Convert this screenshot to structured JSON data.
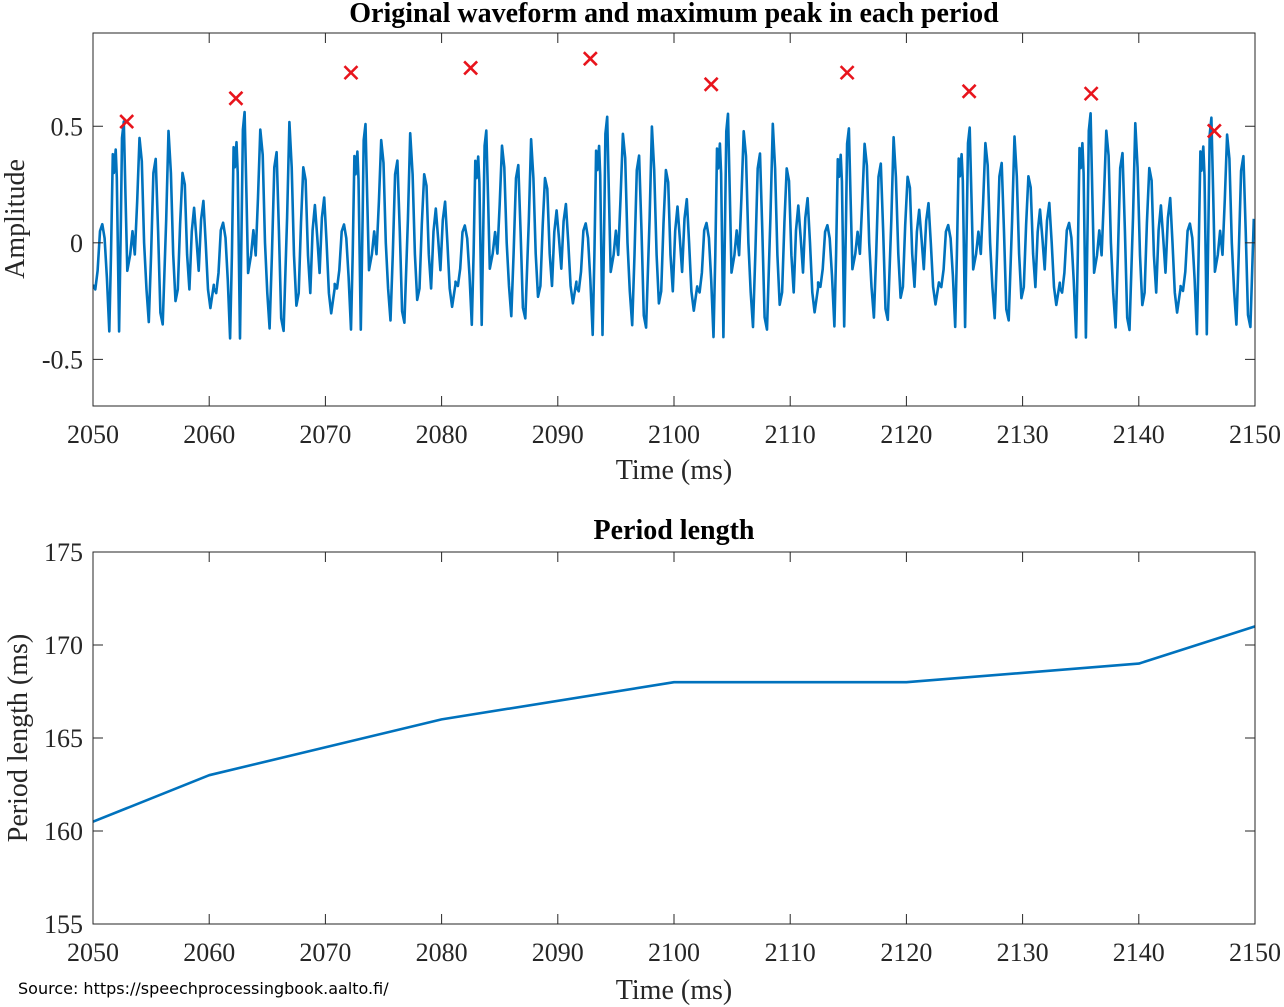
{
  "source_note": "Source: https://speechprocessingbook.aalto.fi/",
  "colors": {
    "line": "#0072BD",
    "marker": "#E8141C",
    "axis": "#262626"
  },
  "chart_data": [
    {
      "type": "line",
      "title": "Original waveform and maximum peak in each period",
      "xlabel": "Time (ms)",
      "ylabel": "Amplitude",
      "xlim": [
        2050,
        2150
      ],
      "ylim": [
        -0.7,
        0.9
      ],
      "xticks": [
        2050,
        2060,
        2070,
        2080,
        2090,
        2100,
        2110,
        2120,
        2130,
        2140,
        2150
      ],
      "yticks": [
        -0.5,
        0,
        0.5
      ],
      "ytick_labels": [
        "-0.5",
        "0",
        "0.5"
      ],
      "grid": false,
      "period_ms": 10.4,
      "series": [
        {
          "kind": "line",
          "x": [
            2050,
            2150
          ],
          "period_template": [
            [
              0.0,
              -0.18
            ],
            [
              0.2,
              -0.2
            ],
            [
              0.4,
              -0.12
            ],
            [
              0.6,
              0.05
            ],
            [
              0.8,
              0.08
            ],
            [
              1.0,
              0.02
            ],
            [
              1.2,
              -0.15
            ],
            [
              1.4,
              -0.38
            ],
            [
              1.55,
              -0.05
            ],
            [
              1.7,
              0.38
            ],
            [
              1.8,
              0.3
            ],
            [
              1.95,
              0.4
            ],
            [
              2.05,
              0.28
            ],
            [
              2.25,
              -0.38
            ],
            [
              2.4,
              0.1
            ],
            [
              2.5,
              0.45
            ],
            [
              2.65,
              0.52
            ],
            [
              2.8,
              0.2
            ],
            [
              2.95,
              -0.12
            ],
            [
              3.2,
              -0.05
            ],
            [
              3.4,
              0.05
            ],
            [
              3.6,
              -0.05
            ],
            [
              3.8,
              0.18
            ],
            [
              4.0,
              0.45
            ],
            [
              4.2,
              0.35
            ],
            [
              4.4,
              0.0
            ],
            [
              4.6,
              -0.2
            ],
            [
              4.8,
              -0.34
            ],
            [
              5.0,
              -0.05
            ],
            [
              5.2,
              0.3
            ],
            [
              5.4,
              0.36
            ],
            [
              5.6,
              0.05
            ],
            [
              5.8,
              -0.3
            ],
            [
              6.0,
              -0.35
            ],
            [
              6.3,
              0.1
            ],
            [
              6.5,
              0.48
            ],
            [
              6.7,
              0.3
            ],
            [
              6.9,
              -0.05
            ],
            [
              7.1,
              -0.25
            ],
            [
              7.3,
              -0.2
            ],
            [
              7.5,
              0.08
            ],
            [
              7.7,
              0.3
            ],
            [
              7.9,
              0.25
            ],
            [
              8.1,
              -0.05
            ],
            [
              8.3,
              -0.2
            ],
            [
              8.5,
              0.05
            ],
            [
              8.7,
              0.15
            ],
            [
              8.9,
              0.02
            ],
            [
              9.1,
              -0.12
            ],
            [
              9.3,
              0.1
            ],
            [
              9.5,
              0.18
            ],
            [
              9.7,
              0.0
            ],
            [
              9.9,
              -0.2
            ],
            [
              10.1,
              -0.28
            ],
            [
              10.4,
              -0.18
            ]
          ]
        },
        {
          "kind": "markers",
          "marker": "x",
          "x": [
            2052.9,
            2062.3,
            2072.2,
            2082.5,
            2092.8,
            2103.2,
            2114.9,
            2125.4,
            2135.9,
            2146.5
          ],
          "y": [
            0.52,
            0.62,
            0.73,
            0.75,
            0.79,
            0.68,
            0.73,
            0.65,
            0.64,
            0.48
          ]
        }
      ]
    },
    {
      "type": "line",
      "title": "Period length",
      "xlabel": "Time (ms)",
      "ylabel": "Period length (ms)",
      "xlim": [
        2050,
        2150
      ],
      "ylim": [
        155,
        175
      ],
      "xticks": [
        2050,
        2060,
        2070,
        2080,
        2090,
        2100,
        2110,
        2120,
        2130,
        2140,
        2150
      ],
      "yticks": [
        155,
        160,
        165,
        170,
        175
      ],
      "grid": false,
      "series": [
        {
          "kind": "line",
          "x": [
            2050,
            2060,
            2080,
            2100,
            2120,
            2140,
            2150
          ],
          "y": [
            160.5,
            163,
            166,
            168,
            168,
            169,
            171
          ]
        }
      ]
    }
  ]
}
